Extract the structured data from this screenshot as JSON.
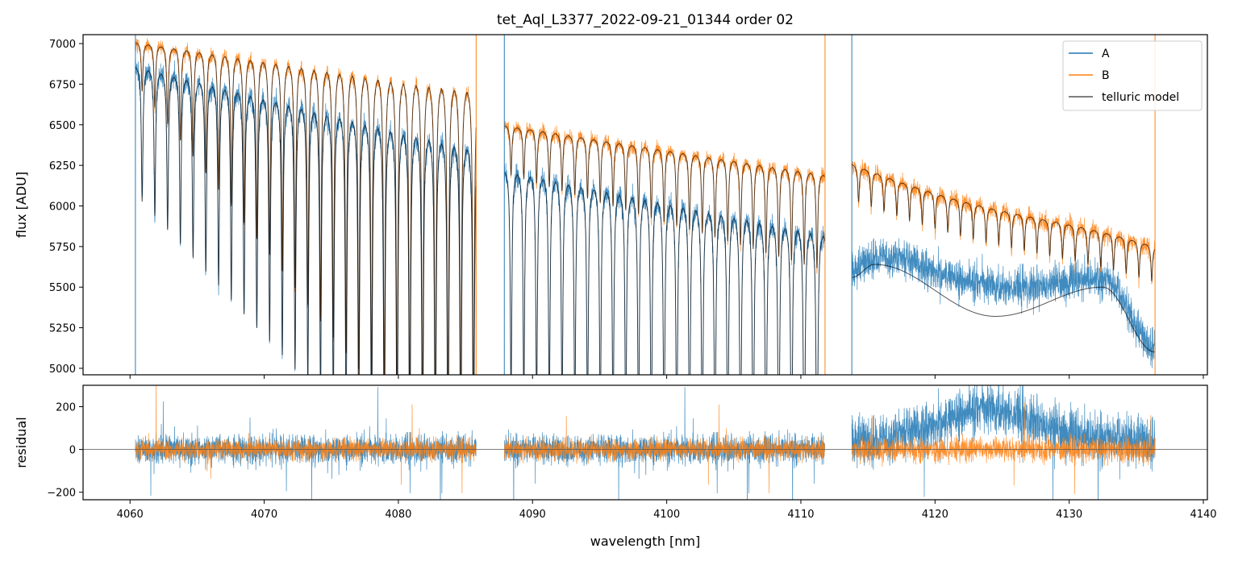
{
  "chart_data": [
    {
      "type": "line",
      "title": "tet_Aql_L3377_2022-09-21_01344  order 02",
      "xlabel": "",
      "ylabel": "flux [ADU]",
      "xlim": [
        4056.5,
        4140.3
      ],
      "ylim": [
        4960,
        7055
      ],
      "yticks": [
        5000,
        5250,
        5500,
        5750,
        6000,
        6250,
        6500,
        6750,
        7000
      ],
      "ytick_labels": [
        "5000",
        "5250",
        "5500",
        "5750",
        "6000",
        "6250",
        "6500",
        "6750",
        "7000"
      ],
      "xticks": [
        4060,
        4070,
        4080,
        4090,
        4100,
        4110,
        4120,
        4130,
        4140
      ],
      "legend": {
        "position": "top-right",
        "entries": [
          {
            "label": "A",
            "color": "#1f77b4"
          },
          {
            "label": "B",
            "color": "#ff7f0e"
          },
          {
            "label": "telluric model",
            "color": "#555555"
          }
        ]
      },
      "segments": [
        {
          "x_range": [
            4060.4,
            4085.8
          ],
          "A_continuum": [
            6870,
            6380
          ],
          "B_continuum": [
            7010,
            6740
          ],
          "line_spacing": 0.95
        },
        {
          "x_range": [
            4087.9,
            4111.8
          ],
          "A_continuum": [
            6240,
            5850
          ],
          "B_continuum": [
            6500,
            6200
          ],
          "line_spacing": 0.95
        },
        {
          "x_range": [
            4113.8,
            4136.4
          ],
          "A_model": "smooth wave 5560 → 5640 (4115.5) → 5320 (4124.5) → 5500 (4132.5) → 5100",
          "B_continuum": [
            6260,
            5720
          ],
          "line_spacing": 0.95
        }
      ],
      "series": [
        {
          "name": "A",
          "color": "#1f77b4",
          "description": "observed flux, trace A"
        },
        {
          "name": "B",
          "color": "#ff7f0e",
          "description": "observed flux, trace B"
        },
        {
          "name": "telluric model",
          "color": "#555555",
          "description": "fitted telluric model for A and B"
        }
      ]
    },
    {
      "type": "line",
      "title": "",
      "xlabel": "wavelength [nm]",
      "ylabel": "residual",
      "xlim": [
        4056.5,
        4140.3
      ],
      "ylim": [
        -235,
        300
      ],
      "yticks": [
        -200,
        0,
        200
      ],
      "ytick_labels": [
        "−200",
        "0",
        "200"
      ],
      "xticks": [
        4060,
        4070,
        4080,
        4090,
        4100,
        4110,
        4120,
        4130,
        4140
      ],
      "xtick_labels": [
        "4060",
        "4070",
        "4080",
        "4090",
        "4100",
        "4110",
        "4120",
        "4130",
        "4140"
      ],
      "zero_line": 0,
      "series": [
        {
          "name": "A",
          "color": "#1f77b4",
          "noise_amplitude": 70,
          "offset_region": {
            "x_range": [
              4114,
              4136
            ],
            "peak_offset": 150,
            "peak_x": 4124
          }
        },
        {
          "name": "B",
          "color": "#ff7f0e",
          "noise_amplitude": 45
        }
      ]
    }
  ]
}
